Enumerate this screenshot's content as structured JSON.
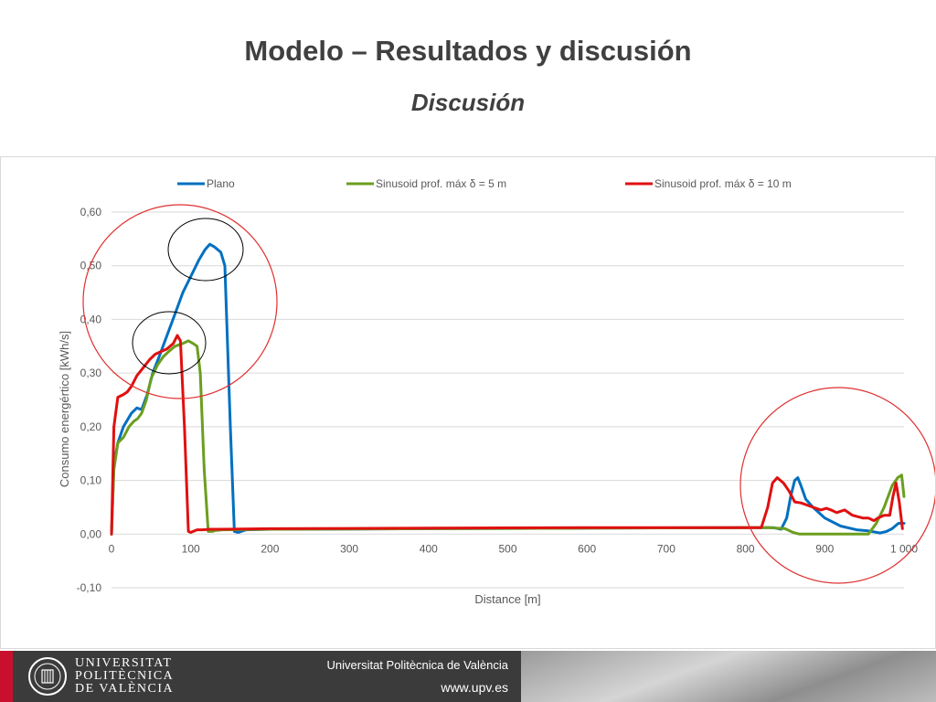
{
  "slide": {
    "title": "Modelo – Resultados y discusión",
    "subtitle": "Discusión"
  },
  "footer": {
    "logo_lines": [
      "UNIVERSITAT",
      "POLITÈCNICA",
      "DE VALÈNCIA"
    ],
    "institution": "Universitat Politècnica de València",
    "url": "www.upv.es"
  },
  "colors": {
    "plano": "#0070C0",
    "sin5": "#6B9E1F",
    "sin10": "#E01010",
    "highlight_circle": "#e03030",
    "peak_circle": "#000000"
  },
  "chart_data": {
    "type": "line",
    "xlabel": "Distance [m]",
    "ylabel": "Consumo energértico [kWh/s]",
    "xlim": [
      0,
      1000
    ],
    "ylim": [
      -0.1,
      0.6
    ],
    "x_ticks": [
      0,
      100,
      200,
      300,
      400,
      500,
      600,
      700,
      800,
      900,
      1000
    ],
    "x_tick_labels": [
      "0",
      "100",
      "200",
      "300",
      "400",
      "500",
      "600",
      "700",
      "800",
      "900",
      "1 000"
    ],
    "y_ticks": [
      -0.1,
      0.0,
      0.1,
      0.2,
      0.3,
      0.4,
      0.5,
      0.6
    ],
    "y_tick_labels": [
      "-0,10",
      "0,00",
      "0,10",
      "0,20",
      "0,30",
      "0,40",
      "0,50",
      "0,60"
    ],
    "grid": true,
    "legend_position": "top",
    "series": [
      {
        "name": "Plano",
        "x": [
          0,
          3,
          8,
          15,
          25,
          32,
          38,
          45,
          52,
          60,
          70,
          80,
          90,
          100,
          110,
          118,
          124,
          130,
          138,
          143,
          150,
          155,
          160,
          170,
          200,
          400,
          600,
          800,
          820,
          835,
          845,
          852,
          857,
          862,
          866,
          870,
          876,
          885,
          900,
          920,
          940,
          955,
          970,
          978,
          985,
          993,
          1000
        ],
        "y": [
          0.0,
          0.13,
          0.17,
          0.2,
          0.225,
          0.235,
          0.232,
          0.26,
          0.3,
          0.33,
          0.37,
          0.41,
          0.45,
          0.48,
          0.51,
          0.53,
          0.54,
          0.535,
          0.525,
          0.5,
          0.2,
          0.005,
          0.003,
          0.008,
          0.009,
          0.01,
          0.011,
          0.012,
          0.012,
          0.012,
          0.009,
          0.03,
          0.07,
          0.1,
          0.105,
          0.09,
          0.065,
          0.05,
          0.03,
          0.015,
          0.008,
          0.006,
          0.002,
          0.005,
          0.01,
          0.02,
          0.02
        ]
      },
      {
        "name": "Sinusoid prof. máx δ = 5 m",
        "x": [
          0,
          3,
          8,
          15,
          22,
          28,
          33,
          38,
          44,
          50,
          58,
          65,
          72,
          80,
          90,
          97,
          103,
          108,
          112,
          117,
          122,
          127,
          132,
          140,
          200,
          400,
          600,
          800,
          830,
          850,
          860,
          868,
          880,
          900,
          930,
          955,
          965,
          975,
          985,
          992,
          997,
          1000
        ],
        "y": [
          0.0,
          0.12,
          0.17,
          0.18,
          0.2,
          0.21,
          0.215,
          0.225,
          0.25,
          0.29,
          0.315,
          0.33,
          0.34,
          0.35,
          0.355,
          0.36,
          0.355,
          0.35,
          0.3,
          0.12,
          0.005,
          0.005,
          0.007,
          0.008,
          0.009,
          0.01,
          0.011,
          0.012,
          0.012,
          0.01,
          0.003,
          0.0,
          0.0,
          0.0,
          0.0,
          0.0,
          0.02,
          0.05,
          0.09,
          0.105,
          0.11,
          0.07
        ]
      },
      {
        "name": "Sinusoid prof. máx δ = 10 m",
        "x": [
          0,
          3,
          8,
          15,
          20,
          25,
          32,
          40,
          48,
          55,
          62,
          70,
          78,
          83,
          87,
          92,
          97,
          100,
          103,
          108,
          115,
          125,
          135,
          200,
          400,
          600,
          800,
          820,
          828,
          834,
          840,
          848,
          855,
          862,
          870,
          885,
          895,
          902,
          908,
          915,
          925,
          935,
          948,
          955,
          962,
          967,
          975,
          982,
          986,
          990,
          994,
          998
        ],
        "y": [
          0.0,
          0.2,
          0.255,
          0.26,
          0.265,
          0.275,
          0.295,
          0.31,
          0.325,
          0.335,
          0.34,
          0.345,
          0.355,
          0.37,
          0.36,
          0.2,
          0.005,
          0.003,
          0.005,
          0.008,
          0.008,
          0.009,
          0.009,
          0.01,
          0.011,
          0.012,
          0.012,
          0.012,
          0.05,
          0.095,
          0.105,
          0.095,
          0.08,
          0.06,
          0.058,
          0.05,
          0.045,
          0.048,
          0.045,
          0.04,
          0.045,
          0.035,
          0.03,
          0.03,
          0.025,
          0.03,
          0.035,
          0.035,
          0.07,
          0.095,
          0.06,
          0.01
        ]
      }
    ]
  }
}
